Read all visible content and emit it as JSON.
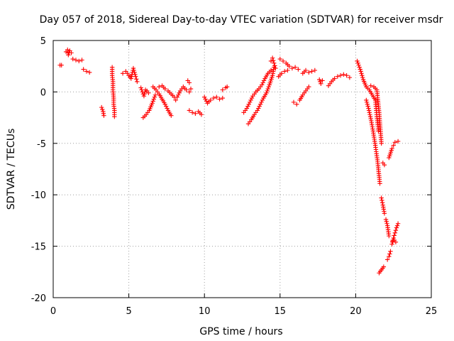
{
  "chart_data": {
    "type": "scatter",
    "title": "Day 057 of 2018, Sidereal Day-to-day VTEC variation (SDTVAR) for receiver msdr",
    "xlabel": "GPS time / hours",
    "ylabel": "SDTVAR / TECUs",
    "xlim": [
      0,
      25
    ],
    "ylim": [
      -20,
      5
    ],
    "xticks": [
      0,
      5,
      10,
      15,
      20,
      25
    ],
    "yticks": [
      -20,
      -15,
      -10,
      -5,
      0,
      5
    ],
    "grid": true,
    "marker": "+",
    "color": "#ff0000",
    "segments": [
      {
        "x": [
          0.45,
          0.55
        ],
        "y": [
          2.6,
          2.6
        ]
      },
      {
        "x": [
          0.85,
          0.95,
          1.0,
          1.1,
          1.2
        ],
        "y": [
          3.9,
          4.1,
          3.6,
          4.0,
          3.8
        ]
      },
      {
        "x": [
          1.3,
          1.5,
          1.7,
          1.9
        ],
        "y": [
          3.2,
          3.1,
          3.0,
          3.1
        ]
      },
      {
        "x": [
          2.0,
          2.2,
          2.4
        ],
        "y": [
          2.2,
          2.0,
          1.9
        ]
      },
      {
        "x": [
          3.2,
          3.3,
          3.35
        ],
        "y": [
          -1.5,
          -1.9,
          -2.3
        ]
      },
      {
        "x": [
          3.9,
          3.9,
          3.95,
          3.95,
          4.0,
          4.0,
          4.05,
          4.05
        ],
        "y": [
          2.4,
          1.6,
          1.0,
          0.2,
          -0.6,
          -1.2,
          -1.8,
          -2.4
        ]
      },
      {
        "x": [
          4.6,
          4.8,
          5.0,
          5.15,
          5.3,
          5.45,
          5.55
        ],
        "y": [
          1.8,
          2.0,
          1.6,
          1.3,
          2.3,
          1.5,
          1.0
        ]
      },
      {
        "x": [
          5.8,
          5.9,
          6.0,
          6.1,
          6.2,
          6.3
        ],
        "y": [
          0.4,
          0.0,
          -0.4,
          0.2,
          0.1,
          -0.1
        ]
      },
      {
        "x": [
          5.95,
          6.15,
          6.35,
          6.55,
          6.75
        ],
        "y": [
          -2.5,
          -2.2,
          -1.8,
          -1.1,
          -0.3
        ]
      },
      {
        "x": [
          6.6,
          6.8,
          7.0,
          7.2,
          7.4,
          7.6,
          7.8
        ],
        "y": [
          0.5,
          0.2,
          -0.2,
          -0.7,
          -1.2,
          -1.8,
          -2.3
        ]
      },
      {
        "x": [
          7.0,
          7.2,
          7.4,
          7.6,
          7.8,
          8.0,
          8.1
        ],
        "y": [
          0.5,
          0.6,
          0.3,
          0.1,
          -0.2,
          -0.5,
          -0.8
        ]
      },
      {
        "x": [
          8.2,
          8.4,
          8.6,
          8.8,
          9.0,
          9.1
        ],
        "y": [
          -0.5,
          0.1,
          0.5,
          0.2,
          0.0,
          0.3
        ]
      },
      {
        "x": [
          8.9,
          9.0
        ],
        "y": [
          1.1,
          0.9
        ]
      },
      {
        "x": [
          9.0,
          9.2,
          9.4,
          9.6,
          9.8
        ],
        "y": [
          -1.8,
          -2.0,
          -2.1,
          -1.9,
          -2.2
        ]
      },
      {
        "x": [
          10.0,
          10.2,
          10.4,
          10.6,
          10.8,
          11.0,
          11.2
        ],
        "y": [
          -0.5,
          -1.1,
          -0.8,
          -0.6,
          -0.5,
          -0.7,
          -0.6
        ]
      },
      {
        "x": [
          11.2,
          11.4,
          11.5
        ],
        "y": [
          0.2,
          0.4,
          0.5
        ]
      },
      {
        "x": [
          12.6,
          12.8,
          13.0,
          13.2,
          13.4,
          13.6,
          13.8,
          14.0,
          14.2,
          14.4
        ],
        "y": [
          -2.0,
          -1.6,
          -1.0,
          -0.4,
          0.0,
          0.3,
          0.7,
          1.3,
          1.8,
          2.1
        ]
      },
      {
        "x": [
          12.9,
          13.1,
          13.3,
          13.5,
          13.7,
          13.9,
          14.1,
          14.3,
          14.5,
          14.6
        ],
        "y": [
          -3.1,
          -2.7,
          -2.2,
          -1.8,
          -1.2,
          -0.6,
          -0.1,
          0.7,
          1.6,
          2.4
        ]
      },
      {
        "x": [
          14.4,
          14.5,
          14.6,
          14.7
        ],
        "y": [
          3.0,
          3.3,
          2.8,
          2.3
        ]
      },
      {
        "x": [
          15.0,
          15.2,
          15.4,
          15.6,
          15.8,
          16.0,
          16.2
        ],
        "y": [
          3.2,
          3.0,
          2.8,
          2.5,
          2.3,
          2.4,
          2.2
        ]
      },
      {
        "x": [
          14.9,
          15.1,
          15.3,
          15.5
        ],
        "y": [
          1.5,
          1.8,
          2.0,
          2.1
        ]
      },
      {
        "x": [
          15.9,
          16.1
        ],
        "y": [
          -1.0,
          -1.2
        ]
      },
      {
        "x": [
          16.3,
          16.5,
          16.7,
          16.9
        ],
        "y": [
          -0.8,
          -0.3,
          0.1,
          0.5
        ]
      },
      {
        "x": [
          16.5,
          16.7,
          16.9,
          17.1,
          17.3
        ],
        "y": [
          1.8,
          2.1,
          1.9,
          2.0,
          2.1
        ]
      },
      {
        "x": [
          17.6,
          17.7,
          17.8
        ],
        "y": [
          1.2,
          0.8,
          1.1
        ]
      },
      {
        "x": [
          18.2,
          18.4,
          18.6,
          18.8,
          19.0,
          19.2,
          19.4,
          19.6
        ],
        "y": [
          0.6,
          1.0,
          1.3,
          1.5,
          1.6,
          1.7,
          1.6,
          1.4
        ]
      },
      {
        "x": [
          20.1,
          20.3,
          20.5,
          20.7,
          20.9,
          21.1,
          21.3,
          21.4,
          21.5
        ],
        "y": [
          3.0,
          2.2,
          1.2,
          0.5,
          0.2,
          -0.3,
          -0.8,
          -2.4,
          -3.8
        ]
      },
      {
        "x": [
          20.7,
          20.85,
          21.0,
          21.15,
          21.3,
          21.45,
          21.6
        ],
        "y": [
          -0.8,
          -1.6,
          -2.6,
          -3.8,
          -5.2,
          -6.8,
          -8.9
        ]
      },
      {
        "x": [
          21.0,
          21.2,
          21.4,
          21.55,
          21.7
        ],
        "y": [
          0.6,
          0.5,
          0.2,
          -2.0,
          -5.0
        ]
      },
      {
        "x": [
          21.7,
          21.8,
          21.9
        ],
        "y": [
          -10.3,
          -11.0,
          -11.8
        ]
      },
      {
        "x": [
          22.0,
          22.1,
          22.2
        ],
        "y": [
          -12.4,
          -13.0,
          -14.0
        ]
      },
      {
        "x": [
          21.8,
          21.9
        ],
        "y": [
          -6.9,
          -7.1
        ]
      },
      {
        "x": [
          22.2,
          22.4,
          22.5,
          22.6,
          22.8
        ],
        "y": [
          -6.4,
          -5.5,
          -5.2,
          -4.9,
          -4.8
        ]
      },
      {
        "x": [
          21.55,
          21.7,
          21.85
        ],
        "y": [
          -17.6,
          -17.3,
          -17.0
        ]
      },
      {
        "x": [
          22.1,
          22.2,
          22.3
        ],
        "y": [
          -16.3,
          -16.0,
          -15.5
        ]
      },
      {
        "x": [
          22.4,
          22.5,
          22.6,
          22.7,
          22.8
        ],
        "y": [
          -14.8,
          -14.2,
          -13.7,
          -13.2,
          -12.8
        ]
      },
      {
        "x": [
          22.45,
          22.55,
          22.65
        ],
        "y": [
          -14.5,
          -14.4,
          -14.6
        ]
      }
    ]
  }
}
